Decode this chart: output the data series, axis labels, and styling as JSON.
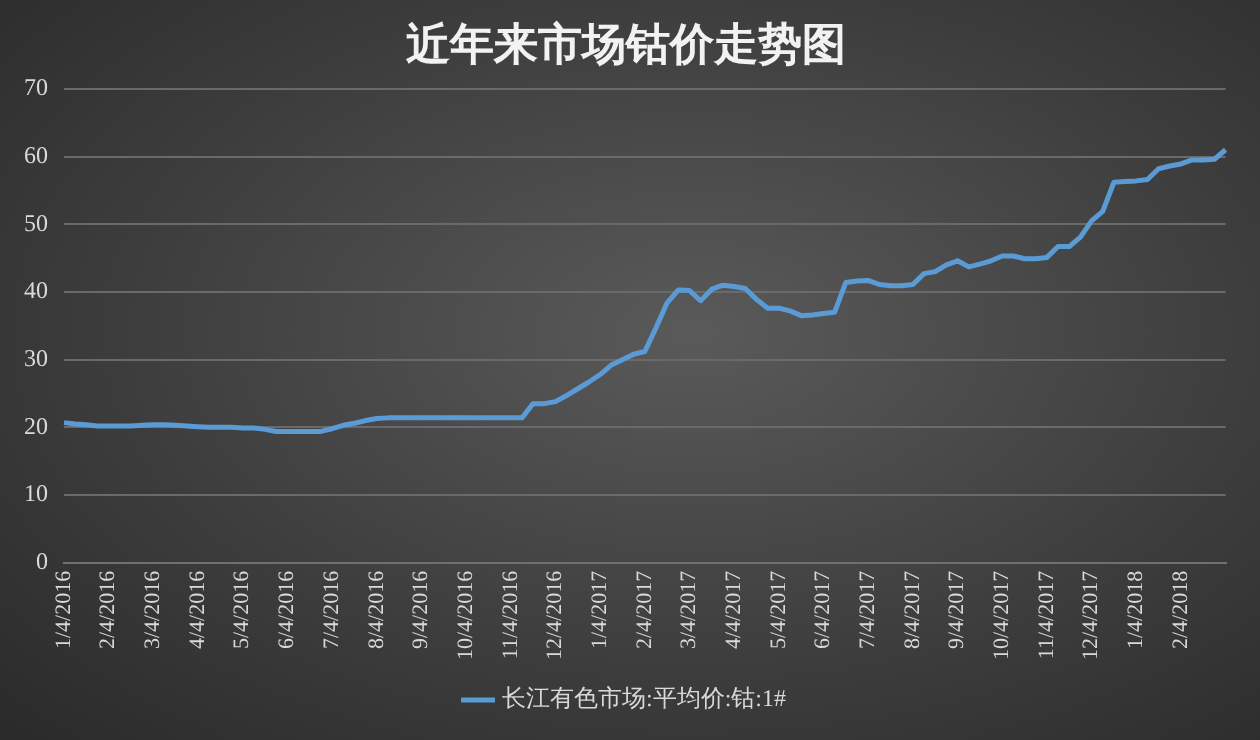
{
  "chart_data": {
    "type": "line",
    "title": "近年来市场钴价走势图",
    "categories": [
      "1/4/2016",
      null,
      null,
      null,
      "2/4/2016",
      null,
      null,
      null,
      "3/4/2016",
      null,
      null,
      null,
      "4/4/2016",
      null,
      null,
      null,
      "5/4/2016",
      null,
      null,
      null,
      "6/4/2016",
      null,
      null,
      null,
      "7/4/2016",
      null,
      null,
      null,
      "8/4/2016",
      null,
      null,
      null,
      "9/4/2016",
      null,
      null,
      null,
      "10/4/2016",
      null,
      null,
      null,
      "11/4/2016",
      null,
      null,
      null,
      "12/4/2016",
      null,
      null,
      null,
      "1/4/2017",
      null,
      null,
      null,
      "2/4/2017",
      null,
      null,
      null,
      "3/4/2017",
      null,
      null,
      null,
      "4/4/2017",
      null,
      null,
      null,
      "5/4/2017",
      null,
      null,
      null,
      "6/4/2017",
      null,
      null,
      null,
      "7/4/2017",
      null,
      null,
      null,
      "8/4/2017",
      null,
      null,
      null,
      "9/4/2017",
      null,
      null,
      null,
      "10/4/2017",
      null,
      null,
      null,
      "11/4/2017",
      null,
      null,
      null,
      "12/4/2017",
      null,
      null,
      null,
      "1/4/2018",
      null,
      null,
      null,
      "2/4/2018",
      null,
      null,
      null,
      null
    ],
    "series": [
      {
        "name": "长江有色市场:平均价:钴:1#",
        "color": "#5b9bd5",
        "values": [
          20.7,
          20.5,
          20.4,
          20.2,
          20.2,
          20.2,
          20.2,
          20.3,
          20.4,
          20.4,
          20.3,
          20.2,
          20.1,
          20.0,
          20.0,
          20.0,
          19.9,
          19.9,
          19.7,
          19.4,
          19.4,
          19.4,
          19.4,
          19.4,
          19.8,
          20.3,
          20.6,
          21.0,
          21.3,
          21.4,
          21.4,
          21.4,
          21.4,
          21.4,
          21.4,
          21.4,
          21.4,
          21.4,
          21.4,
          21.4,
          21.4,
          21.4,
          23.5,
          23.5,
          23.8,
          24.7,
          25.7,
          26.7,
          27.8,
          29.2,
          30.0,
          30.8,
          31.2,
          34.7,
          38.4,
          40.3,
          40.2,
          38.7,
          40.4,
          41.0,
          40.8,
          40.5,
          38.9,
          37.6,
          37.6,
          37.2,
          36.5,
          36.6,
          36.8,
          37.0,
          41.4,
          41.6,
          41.7,
          41.1,
          40.9,
          40.9,
          41.1,
          42.7,
          43.0,
          44.0,
          44.6,
          43.7,
          44.1,
          44.6,
          45.3,
          45.3,
          44.9,
          44.9,
          45.1,
          46.7,
          46.7,
          48.1,
          50.5,
          51.9,
          56.2,
          56.3,
          56.4,
          56.6,
          58.2,
          58.6,
          58.9,
          59.5,
          59.5,
          59.6,
          61.0
        ]
      }
    ],
    "ylim": [
      0,
      70
    ],
    "yticks": [
      0,
      10,
      20,
      30,
      40,
      50,
      60,
      70
    ],
    "grid": "y",
    "legend": "bottom",
    "marker": "none"
  }
}
